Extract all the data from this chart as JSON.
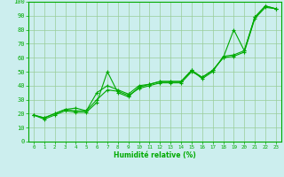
{
  "xlabel": "Humidité relative (%)",
  "xlim": [
    -0.5,
    23.5
  ],
  "ylim": [
    0,
    100
  ],
  "xticks": [
    0,
    1,
    2,
    3,
    4,
    5,
    6,
    7,
    8,
    9,
    10,
    11,
    12,
    13,
    14,
    15,
    16,
    17,
    18,
    19,
    20,
    21,
    22,
    23
  ],
  "yticks": [
    0,
    10,
    20,
    30,
    40,
    50,
    60,
    70,
    80,
    90,
    100
  ],
  "bg_color": "#cceeee",
  "grid_color": "#99cc99",
  "line_color": "#00aa00",
  "line1_y": [
    19,
    16,
    19,
    22,
    21,
    21,
    28,
    50,
    35,
    32,
    39,
    41,
    43,
    43,
    43,
    51,
    45,
    50,
    61,
    62,
    65,
    89,
    97,
    95
  ],
  "line2_y": [
    19,
    17,
    20,
    23,
    24,
    22,
    35,
    40,
    37,
    34,
    40,
    41,
    43,
    43,
    43,
    51,
    46,
    51,
    60,
    80,
    65,
    89,
    97,
    95
  ],
  "line3_y": [
    19,
    17,
    20,
    23,
    22,
    22,
    30,
    37,
    36,
    33,
    38,
    40,
    42,
    42,
    42,
    50,
    46,
    51,
    60,
    61,
    64,
    88,
    96,
    95
  ]
}
